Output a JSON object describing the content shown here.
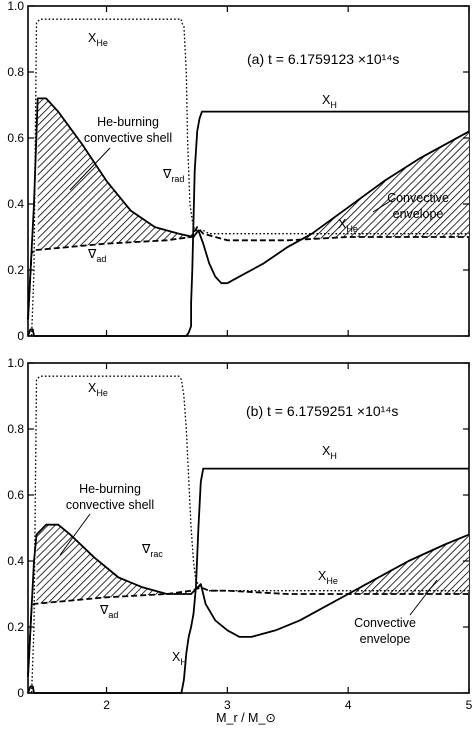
{
  "chart_data": [
    {
      "type": "line",
      "panel_label": "(a)",
      "title": "(a)  t = 6.1759123 ×10¹⁴s",
      "xlim": [
        1.35,
        5.0
      ],
      "ylim": [
        0,
        1.0
      ],
      "x_ticks": [
        "2",
        "3",
        "4",
        "5"
      ],
      "y_ticks": [
        "0",
        "0.2",
        "0.4",
        "0.6",
        "0.8",
        "1.0"
      ],
      "series": [
        {
          "name": "X_H",
          "style": "solid",
          "x": [
            1.35,
            1.37,
            1.39,
            1.4,
            2.64,
            2.66,
            2.68,
            2.69,
            2.7,
            2.7,
            2.71,
            2.72,
            2.73,
            2.75,
            2.77,
            2.79,
            5.0
          ],
          "y": [
            0.0,
            0.02,
            0.02,
            0.0,
            0.0,
            0.0,
            0.01,
            0.02,
            0.03,
            0.1,
            0.2,
            0.35,
            0.5,
            0.62,
            0.66,
            0.68,
            0.68
          ]
        },
        {
          "name": "X_He",
          "style": "dotted",
          "x": [
            1.35,
            1.38,
            1.4,
            1.42,
            1.45,
            2.6,
            2.62,
            2.62,
            2.64,
            2.66,
            2.67,
            2.69,
            2.71,
            2.72,
            2.74,
            2.76,
            2.8,
            2.85,
            3.0,
            3.5,
            5.0
          ],
          "y": [
            0.0,
            0.0,
            0.2,
            0.95,
            0.96,
            0.96,
            0.96,
            0.95,
            0.94,
            0.8,
            0.6,
            0.4,
            0.35,
            0.33,
            0.32,
            0.32,
            0.32,
            0.31,
            0.31,
            0.31,
            0.31
          ]
        },
        {
          "name": "∇_rad",
          "style": "solid",
          "x": [
            1.35,
            1.4,
            1.43,
            1.5,
            1.6,
            1.8,
            2.0,
            2.2,
            2.4,
            2.6,
            2.72,
            2.76,
            2.8,
            2.85,
            2.9,
            2.95,
            3.0,
            3.1,
            3.3,
            3.5,
            3.7,
            4.0,
            4.3,
            4.6,
            5.0
          ],
          "y": [
            0.05,
            0.4,
            0.72,
            0.72,
            0.68,
            0.58,
            0.47,
            0.38,
            0.33,
            0.31,
            0.3,
            0.32,
            0.28,
            0.22,
            0.18,
            0.16,
            0.16,
            0.18,
            0.22,
            0.27,
            0.31,
            0.39,
            0.47,
            0.54,
            0.62
          ]
        },
        {
          "name": "∇_ad",
          "style": "dashed",
          "x": [
            1.35,
            1.38,
            1.4,
            2.0,
            2.5,
            2.7,
            2.75,
            2.8,
            2.9,
            3.0,
            3.5,
            4.0,
            5.0
          ],
          "y": [
            0.05,
            0.25,
            0.26,
            0.28,
            0.29,
            0.3,
            0.33,
            0.31,
            0.3,
            0.29,
            0.29,
            0.3,
            0.3
          ]
        }
      ],
      "shaded_regions": [
        {
          "label": "He-burning convective shell",
          "x_range": [
            1.43,
            2.72
          ]
        },
        {
          "label": "Convective envelope",
          "x_range": [
            3.6,
            5.0
          ]
        }
      ],
      "annotations": {
        "x_he_top": "X",
        "x_he_top_sub": "He",
        "x_h": "X",
        "x_h_sub": "H",
        "shell": [
          "He-burning",
          "convective shell"
        ],
        "nabla_rad": "∇",
        "nabla_rad_sub": "rad",
        "nabla_ad": "∇",
        "nabla_ad_sub": "ad",
        "x_he_mid": "X",
        "x_he_mid_sub": "He",
        "envelope": [
          "Convective",
          "envelope"
        ]
      }
    },
    {
      "type": "line",
      "panel_label": "(b)",
      "title": "(b)  t = 6.1759251 ×10¹⁴s",
      "xlim": [
        1.35,
        5.0
      ],
      "ylim": [
        0,
        1.0
      ],
      "x_ticks": [
        "2",
        "3",
        "4",
        "5"
      ],
      "y_ticks": [
        "0",
        "0.2",
        "0.4",
        "0.6",
        "0.8",
        "1.0"
      ],
      "xlabel": "M_r / M_⊙",
      "series": [
        {
          "name": "X_H",
          "style": "solid",
          "x": [
            1.35,
            1.37,
            1.39,
            1.4,
            2.62,
            2.64,
            2.66,
            2.68,
            2.7,
            2.72,
            2.74,
            2.76,
            2.78,
            2.8,
            5.0
          ],
          "y": [
            0.0,
            0.02,
            0.02,
            0.0,
            0.0,
            0.04,
            0.12,
            0.17,
            0.2,
            0.24,
            0.32,
            0.5,
            0.64,
            0.68,
            0.68
          ]
        },
        {
          "name": "X_He",
          "style": "dotted",
          "x": [
            1.35,
            1.38,
            1.4,
            1.42,
            1.45,
            2.6,
            2.62,
            2.64,
            2.66,
            2.68,
            2.7,
            2.72,
            2.74,
            2.78,
            2.85,
            3.0,
            3.5,
            5.0
          ],
          "y": [
            0.0,
            0.0,
            0.2,
            0.95,
            0.96,
            0.96,
            0.95,
            0.9,
            0.8,
            0.65,
            0.5,
            0.4,
            0.34,
            0.32,
            0.31,
            0.31,
            0.31,
            0.31
          ]
        },
        {
          "name": "∇_rad",
          "style": "solid",
          "x": [
            1.35,
            1.4,
            1.42,
            1.5,
            1.6,
            1.7,
            1.9,
            2.1,
            2.3,
            2.5,
            2.7,
            2.78,
            2.82,
            2.9,
            3.0,
            3.1,
            3.2,
            3.4,
            3.6,
            3.8,
            4.0,
            4.2,
            4.5,
            4.8,
            5.0
          ],
          "y": [
            0.05,
            0.4,
            0.48,
            0.51,
            0.51,
            0.48,
            0.41,
            0.35,
            0.32,
            0.3,
            0.3,
            0.33,
            0.27,
            0.22,
            0.19,
            0.17,
            0.17,
            0.19,
            0.22,
            0.26,
            0.3,
            0.34,
            0.4,
            0.45,
            0.48
          ]
        },
        {
          "name": "∇_ad",
          "style": "dashed",
          "x": [
            1.35,
            1.38,
            1.4,
            2.0,
            2.5,
            2.7,
            2.78,
            2.85,
            3.0,
            3.5,
            4.0,
            5.0
          ],
          "y": [
            0.05,
            0.26,
            0.27,
            0.29,
            0.3,
            0.31,
            0.32,
            0.31,
            0.31,
            0.3,
            0.3,
            0.3
          ]
        }
      ],
      "shaded_regions": [
        {
          "label": "He-burning convective shell",
          "x_range": [
            1.42,
            2.7
          ]
        },
        {
          "label": "Convective envelope",
          "x_range": [
            4.0,
            5.0
          ]
        }
      ],
      "annotations": {
        "x_he_top": "X",
        "x_he_top_sub": "He",
        "x_h": "X",
        "x_h_sub": "H",
        "shell": [
          "He-burning",
          "convective shell"
        ],
        "nabla_rad": "∇",
        "nabla_rad_sub": "rac",
        "nabla_ad": "∇",
        "nabla_ad_sub": "ad",
        "x_he_mid": "X",
        "x_he_mid_sub": "He",
        "x_h_low": "X",
        "x_h_low_sub": "H",
        "envelope": [
          "Convective",
          "envelope"
        ]
      }
    }
  ]
}
